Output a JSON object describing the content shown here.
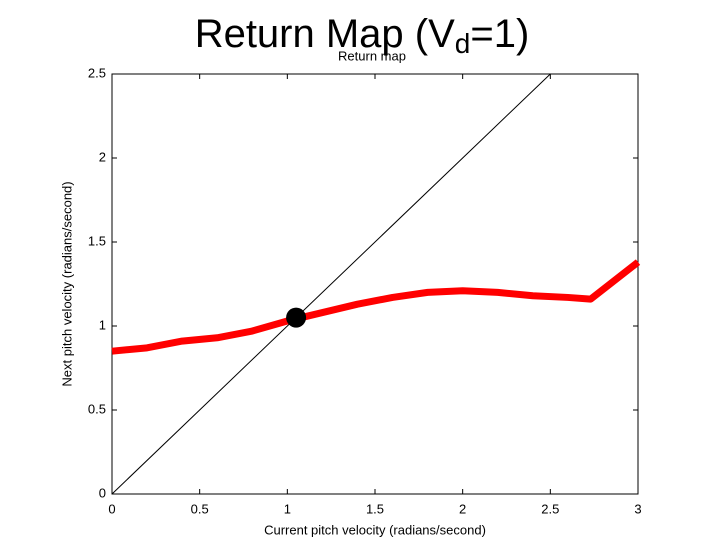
{
  "chart_data": {
    "type": "line",
    "title_parts": [
      "Return Map (V",
      "d",
      "=1)"
    ],
    "subtitle": "Return map",
    "x_label": "Current pitch velocity (radians/second)",
    "y_label": "Next pitch velocity (radians/second)",
    "xlim": [
      0,
      3
    ],
    "ylim": [
      0,
      2.5
    ],
    "xticks": [
      0,
      0.5,
      1,
      1.5,
      2,
      2.5,
      3
    ],
    "yticks": [
      0,
      0.5,
      1,
      1.5,
      2,
      2.5
    ],
    "grid": false,
    "series": [
      {
        "color": "#ff0000",
        "x": [
          0,
          0.2,
          0.4,
          0.6,
          0.8,
          1.0,
          1.2,
          1.4,
          1.6,
          1.8,
          2.0,
          2.2,
          2.4,
          2.6,
          2.73,
          3.0
        ],
        "values": [
          0.85,
          0.87,
          0.91,
          0.93,
          0.97,
          1.03,
          1.08,
          1.13,
          1.17,
          1.2,
          1.21,
          1.2,
          1.18,
          1.17,
          1.16,
          1.38
        ]
      },
      {
        "color": "#000000",
        "x": [
          0,
          2.5
        ],
        "values": [
          0,
          2.5
        ]
      },
      {
        "color": "#000000",
        "marker": true,
        "x": [
          1.05
        ],
        "values": [
          1.05
        ]
      }
    ]
  }
}
